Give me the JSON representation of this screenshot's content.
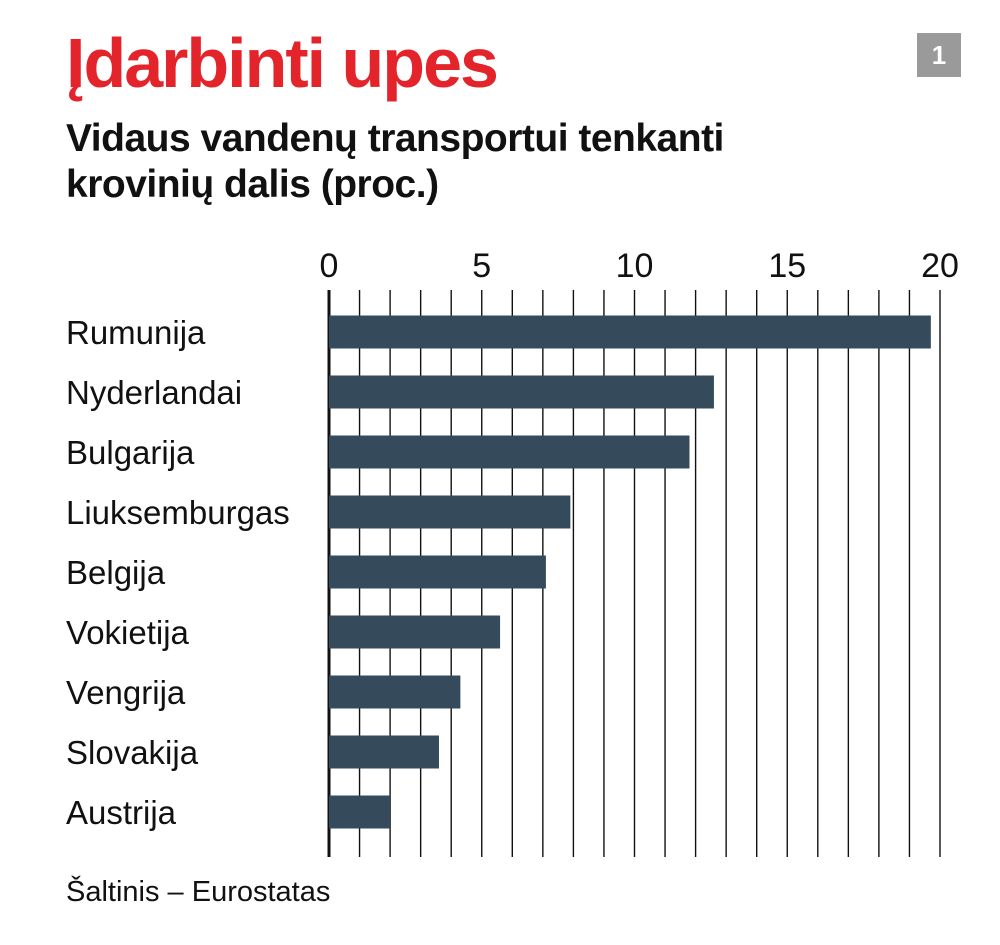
{
  "header": {
    "headline": "Įdarbinti upes",
    "badge": "1",
    "subtitle_line1": "Vidaus vandenų transportui tenkanti",
    "subtitle_line2": "krovinių dalis (proc.)"
  },
  "footer": {
    "source": "Šaltinis – Eurostatas"
  },
  "colors": {
    "headline": "#e3242b",
    "badge": "#9a9a9a",
    "bar": "#354a5b",
    "grid": "#111111",
    "text": "#111111"
  },
  "chart_data": {
    "type": "bar",
    "orientation": "horizontal",
    "title": "Vidaus vandenų transportui tenkanti krovinių dalis (proc.)",
    "categories": [
      "Rumunija",
      "Nyderlandai",
      "Bulgarija",
      "Liuksemburgas",
      "Belgija",
      "Vokietija",
      "Vengrija",
      "Slovakija",
      "Austrija"
    ],
    "values": [
      19.7,
      12.6,
      11.8,
      7.9,
      7.1,
      5.6,
      4.3,
      3.6,
      2.0
    ],
    "xlim": [
      0,
      20
    ],
    "major_ticks": [
      0,
      5,
      10,
      15,
      20
    ],
    "tick_labels": [
      "0",
      "5",
      "10",
      "15",
      "20"
    ],
    "minor_tick_step": 1,
    "grid": true,
    "axis_position": "top"
  }
}
